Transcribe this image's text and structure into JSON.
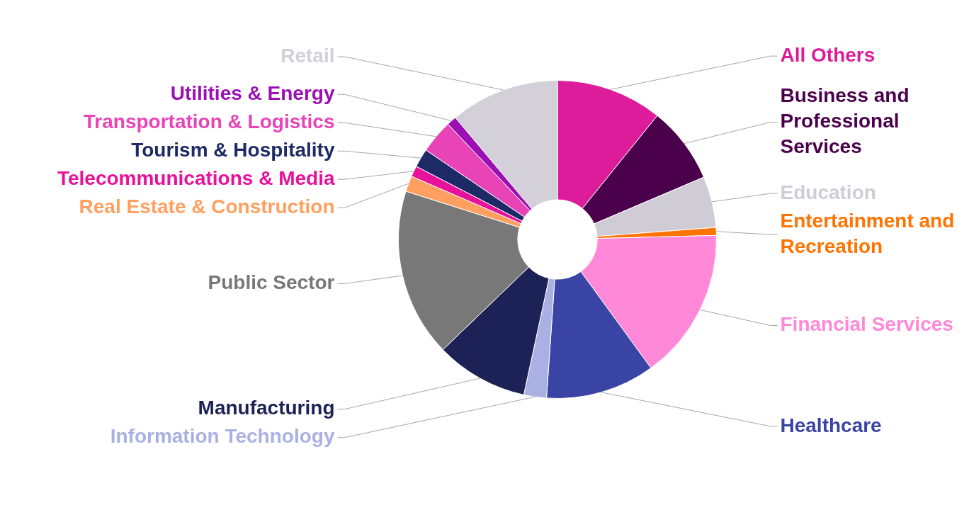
{
  "chart_data": {
    "type": "donut",
    "categories": [
      "All Others",
      "Business and Professional Services",
      "Education",
      "Entertainment and Recreation",
      "Financial Services",
      "Healthcare",
      "Information Technology",
      "Manufacturing",
      "Public Sector",
      "Real Estate & Construction",
      "Telecommunications & Media",
      "Tourism & Hospitality",
      "Transportation & Logistics",
      "Utilities & Energy",
      "Retail"
    ],
    "values": [
      10.8,
      7.8,
      5.2,
      0.8,
      15.4,
      11.1,
      2.3,
      9.4,
      17.1,
      1.6,
      1.1,
      1.9,
      3.4,
      1.0,
      11.1
    ],
    "colors": [
      "#dd1c9b",
      "#4b004b",
      "#d0ccd6",
      "#ff7300",
      "#ff88d8",
      "#3a44a4",
      "#aab0e4",
      "#1c2255",
      "#787878",
      "#ffa060",
      "#e8119a",
      "#1e2a66",
      "#e844b8",
      "#9b0fb3",
      "#d3d0da"
    ]
  }
}
